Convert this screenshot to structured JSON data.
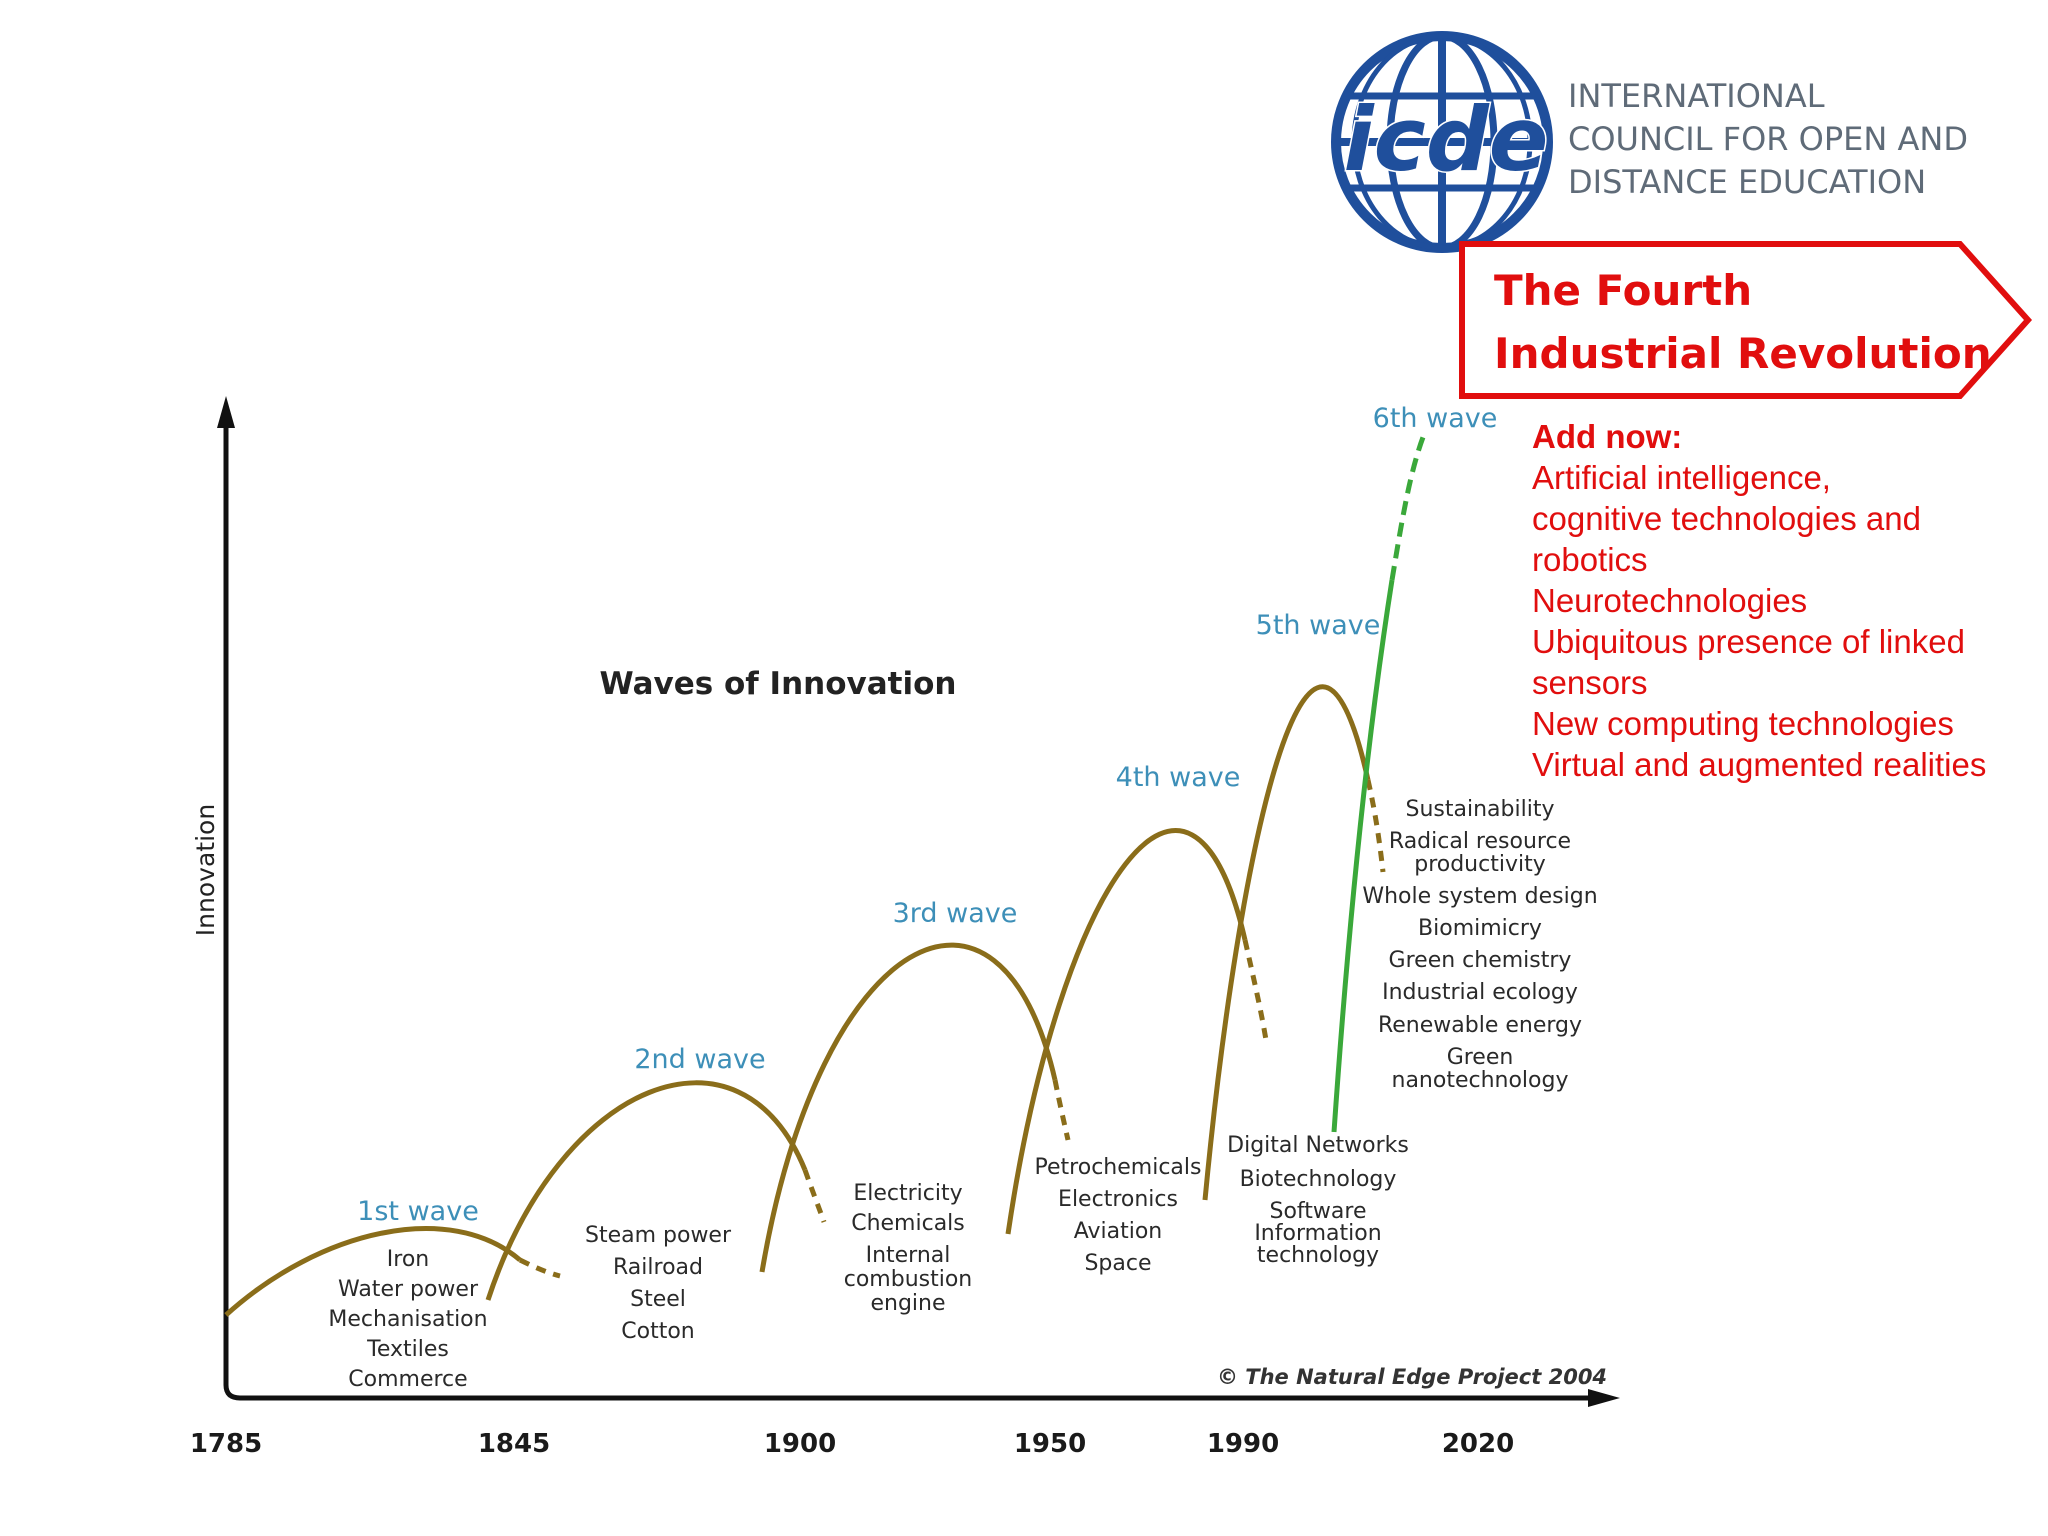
{
  "logo": {
    "wordmark": "icde",
    "org_lines": [
      "INTERNATIONAL",
      "COUNCIL FOR OPEN AND",
      "DISTANCE EDUCATION"
    ]
  },
  "callout": {
    "title_lines": [
      "The Fourth",
      "Industrial Revolution"
    ]
  },
  "add_now": {
    "heading": "Add now:",
    "lines": [
      "Artificial intelligence,",
      "cognitive technologies and",
      "robotics",
      "Neurotechnologies",
      "Ubiquitous presence of linked",
      "sensors",
      "New computing technologies",
      "Virtual and augmented realities"
    ]
  },
  "diagram": {
    "title": "Waves of Innovation",
    "y_axis_label": "Innovation",
    "credit": "© The Natural Edge Project 2004",
    "x_ticks": [
      "1785",
      "1845",
      "1900",
      "1950",
      "1990",
      "2020"
    ],
    "waves": [
      {
        "label": "1st wave",
        "technologies": [
          "Iron",
          "Water power",
          "Mechanisation",
          "Textiles",
          "Commerce"
        ]
      },
      {
        "label": "2nd wave",
        "technologies": [
          "Steam power",
          "Railroad",
          "Steel",
          "Cotton"
        ]
      },
      {
        "label": "3rd wave",
        "technologies": [
          "Electricity",
          "Chemicals",
          "Internal",
          "combustion",
          "engine"
        ]
      },
      {
        "label": "4th wave",
        "technologies": [
          "Petrochemicals",
          "Electronics",
          "Aviation",
          "Space"
        ]
      },
      {
        "label": "5th wave",
        "technologies": [
          "Digital Networks",
          "Biotechnology",
          "Software",
          "Information",
          "technology"
        ]
      },
      {
        "label": "6th wave",
        "technologies": [
          "Sustainability",
          "Radical resource",
          "productivity",
          "Whole system design",
          "Biomimicry",
          "Green chemistry",
          "Industrial ecology",
          "Renewable energy",
          "Green",
          "nanotechnology"
        ]
      }
    ],
    "colors": {
      "wave_curve": "#8a6d1a",
      "sixth_wave_curve": "#3aa83a",
      "wave_label": "#3d8fb8",
      "callout_red": "#e10e0e",
      "logo_blue": "#1f4f9c"
    }
  }
}
